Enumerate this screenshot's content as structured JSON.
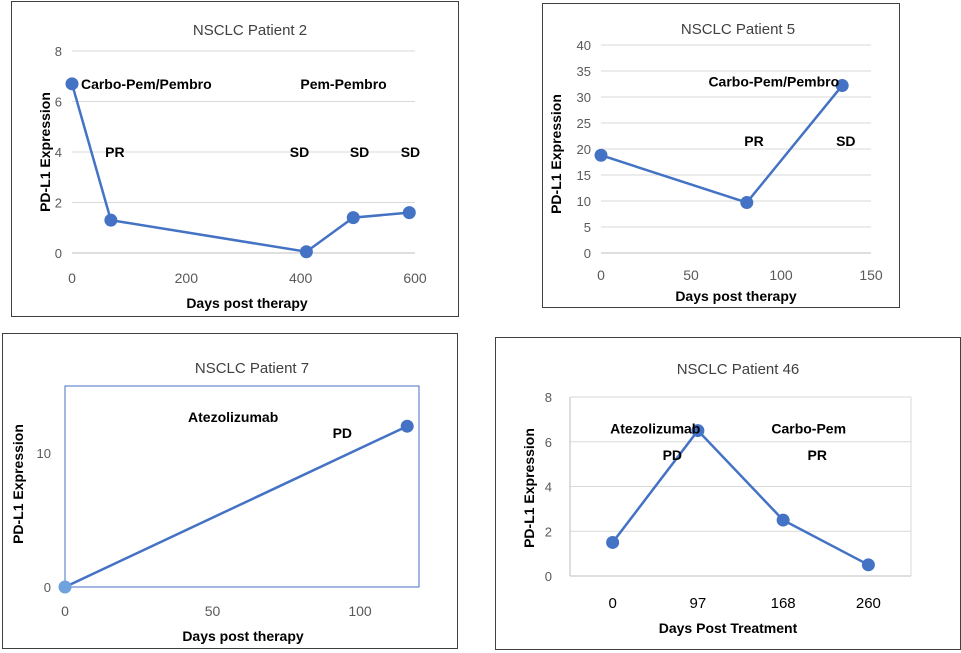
{
  "chart_data": [
    {
      "type": "scatter",
      "title": "NSCLC Patient 2",
      "xlabel": "Days post therapy",
      "ylabel": "PD-L1 Expression",
      "xlim": [
        0,
        600
      ],
      "ylim": [
        0,
        8
      ],
      "xticks": [
        0,
        200,
        400,
        600
      ],
      "yticks": [
        0,
        2,
        4,
        6,
        8
      ],
      "grid": "horizontal",
      "color": "#4472C4",
      "series": [
        {
          "x": [
            0,
            68,
            410,
            492,
            590
          ],
          "y": [
            6.7,
            1.3,
            0.05,
            1.4,
            1.6
          ]
        }
      ],
      "annotations": [
        {
          "text": "Carbo-Pem/Pembro",
          "x": 130,
          "y": 6.7
        },
        {
          "text": "Pem-Pembro",
          "x": 475,
          "y": 6.7
        },
        {
          "text": "PR",
          "x": 75,
          "y": 4.0
        },
        {
          "text": "SD",
          "x": 398,
          "y": 4.0
        },
        {
          "text": "SD",
          "x": 503,
          "y": 4.0
        },
        {
          "text": "SD",
          "x": 592,
          "y": 4.0
        }
      ]
    },
    {
      "type": "scatter",
      "title": "NSCLC Patient 5",
      "xlabel": "Days post therapy",
      "ylabel": "PD-L1 Expression",
      "xlim": [
        0,
        150
      ],
      "ylim": [
        0,
        40
      ],
      "xticks": [
        0,
        50,
        100,
        150
      ],
      "yticks": [
        0,
        5,
        10,
        15,
        20,
        25,
        30,
        35,
        40
      ],
      "grid": "horizontal",
      "color": "#4472C4",
      "series": [
        {
          "x": [
            0,
            81,
            134
          ],
          "y": [
            18.8,
            9.7,
            32.2
          ]
        }
      ],
      "annotations": [
        {
          "text": "Carbo-Pem/Pembro",
          "x": 96,
          "y": 33
        },
        {
          "text": "PR",
          "x": 85,
          "y": 21.5
        },
        {
          "text": "SD",
          "x": 136,
          "y": 21.5
        }
      ]
    },
    {
      "type": "line",
      "title": "NSCLC Patient 7",
      "xlabel": "Days post therapy",
      "ylabel": "PD-L1 Expression",
      "xlim": [
        0,
        120
      ],
      "ylim": [
        0,
        15
      ],
      "xticks": [
        0,
        50,
        100
      ],
      "yticks": [
        0,
        10
      ],
      "grid": "none",
      "color": "#4472C4",
      "series": [
        {
          "x": [
            0,
            116
          ],
          "y": [
            0,
            12
          ]
        }
      ],
      "annotations": [
        {
          "text": "Atezolizumab",
          "x": 57,
          "y": 12.7
        },
        {
          "text": "PD",
          "x": 94,
          "y": 11.5
        }
      ]
    },
    {
      "type": "line",
      "title": "NSCLC Patient 46",
      "xlabel": "Days Post Treatment",
      "ylabel": "PD-L1 Expression",
      "categories": [
        "0",
        "97",
        "168",
        "260"
      ],
      "ylim": [
        0,
        8
      ],
      "yticks": [
        0,
        2,
        4,
        6,
        8
      ],
      "grid": "horizontal",
      "color": "#4472C4",
      "series": [
        {
          "values": [
            1.5,
            6.5,
            2.5,
            0.5
          ]
        }
      ],
      "annotations": [
        {
          "text": "Atezolizumab",
          "x": 0.5,
          "y": 6.6
        },
        {
          "text": "PD",
          "x": 0.7,
          "y": 5.4
        },
        {
          "text": "Carbo-Pem",
          "x": 2.3,
          "y": 6.6
        },
        {
          "text": "PR",
          "x": 2.4,
          "y": 5.4
        }
      ]
    }
  ]
}
